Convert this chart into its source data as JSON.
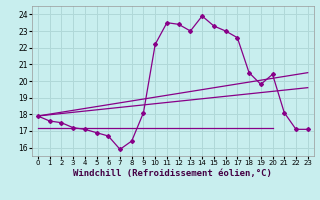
{
  "xlabel": "Windchill (Refroidissement éolien,°C)",
  "xlim": [
    -0.5,
    23.5
  ],
  "ylim": [
    15.5,
    24.5
  ],
  "yticks": [
    16,
    17,
    18,
    19,
    20,
    21,
    22,
    23,
    24
  ],
  "xticks": [
    0,
    1,
    2,
    3,
    4,
    5,
    6,
    7,
    8,
    9,
    10,
    11,
    12,
    13,
    14,
    15,
    16,
    17,
    18,
    19,
    20,
    21,
    22,
    23
  ],
  "bg_color": "#c8eeee",
  "grid_color": "#b0d8d8",
  "line_color": "#880088",
  "line1_x": [
    0,
    1,
    2,
    3,
    4,
    5,
    6,
    7,
    8,
    9,
    10,
    11,
    12,
    13,
    14,
    15,
    16,
    17,
    18,
    19,
    20,
    21,
    22,
    23
  ],
  "line1_y": [
    17.9,
    17.6,
    17.5,
    17.2,
    17.1,
    16.9,
    16.7,
    15.9,
    16.4,
    18.1,
    22.2,
    23.5,
    23.4,
    23.0,
    23.9,
    23.3,
    23.0,
    22.6,
    20.5,
    19.8,
    20.4,
    18.1,
    17.1,
    17.1
  ],
  "line2_x": [
    0,
    23
  ],
  "line2_y": [
    17.9,
    19.6
  ],
  "line3_x": [
    0,
    23
  ],
  "line3_y": [
    17.9,
    20.5
  ],
  "line4_x": [
    0,
    20
  ],
  "line4_y": [
    17.2,
    17.2
  ],
  "xlabel_color": "#440044",
  "xlabel_fontsize": 6.5,
  "tick_fontsize": 5.5,
  "xtick_fontsize": 5.0
}
